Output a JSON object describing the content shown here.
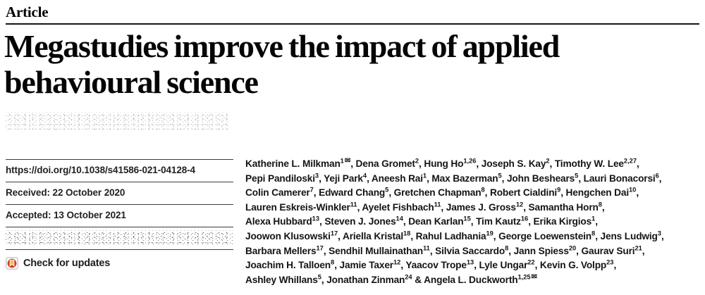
{
  "header": {
    "kicker": "Article",
    "title": "Megastudies improve the impact of applied\nbehavioural science"
  },
  "colors": {
    "text": "#1a1a1a",
    "rule": "#3d3d3d",
    "crossmark_red": "#cf3a2f",
    "crossmark_yellow": "#f5c33b"
  },
  "sidebar": {
    "rows": [
      {
        "kind": "link",
        "name": "doi-link",
        "interactable": true,
        "text": "https://doi.org/10.1038/s41586-021-04128-4"
      },
      {
        "kind": "text",
        "name": "received-date",
        "interactable": false,
        "text": "Received: 22 October 2020"
      },
      {
        "kind": "text",
        "name": "accepted-date",
        "interactable": false,
        "text": "Accepted: 13 October 2021"
      },
      {
        "kind": "redacted",
        "name": "published-online-redacted-row",
        "interactable": false,
        "text": ""
      }
    ],
    "check_for_updates_label": "Check for updates"
  },
  "icons": {
    "check_for_updates": "crossmark-icon",
    "corresponding_author": "envelope-icon",
    "mail_glyph": "✉"
  },
  "authors": {
    "lines": [
      [
        {
          "name": "Katherine L. Milkman",
          "sup": "1",
          "mail": true,
          "post": ", "
        },
        {
          "name": "Dena Gromet",
          "sup": "2",
          "post": ", "
        },
        {
          "name": "Hung Ho",
          "sup": "1,26",
          "post": ", "
        },
        {
          "name": "Joseph S. Kay",
          "sup": "2",
          "post": ", "
        },
        {
          "name": "Timothy W. Lee",
          "sup": "2,27",
          "post": ","
        }
      ],
      [
        {
          "name": "Pepi Pandiloski",
          "sup": "3",
          "post": ", "
        },
        {
          "name": "Yeji Park",
          "sup": "4",
          "post": ", "
        },
        {
          "name": "Aneesh Rai",
          "sup": "1",
          "post": ", "
        },
        {
          "name": "Max Bazerman",
          "sup": "5",
          "post": ", "
        },
        {
          "name": "John Beshears",
          "sup": "5",
          "post": ", "
        },
        {
          "name": "Lauri Bonacorsi",
          "sup": "6",
          "post": ","
        }
      ],
      [
        {
          "name": "Colin Camerer",
          "sup": "7",
          "post": ", "
        },
        {
          "name": "Edward Chang",
          "sup": "5",
          "post": ", "
        },
        {
          "name": "Gretchen Chapman",
          "sup": "8",
          "post": ", "
        },
        {
          "name": "Robert Cialdini",
          "sup": "9",
          "post": ", "
        },
        {
          "name": "Hengchen Dai",
          "sup": "10",
          "post": ","
        }
      ],
      [
        {
          "name": "Lauren Eskreis-Winkler",
          "sup": "11",
          "post": ", "
        },
        {
          "name": "Ayelet Fishbach",
          "sup": "11",
          "post": ", "
        },
        {
          "name": "James J. Gross",
          "sup": "12",
          "post": ", "
        },
        {
          "name": "Samantha Horn",
          "sup": "8",
          "post": ","
        }
      ],
      [
        {
          "name": "Alexa Hubbard",
          "sup": "13",
          "post": ", "
        },
        {
          "name": "Steven J. Jones",
          "sup": "14",
          "post": ", "
        },
        {
          "name": "Dean Karlan",
          "sup": "15",
          "post": ", "
        },
        {
          "name": "Tim Kautz",
          "sup": "16",
          "post": ", "
        },
        {
          "name": "Erika Kirgios",
          "sup": "1",
          "post": ","
        }
      ],
      [
        {
          "name": "Joowon Klusowski",
          "sup": "17",
          "post": ", "
        },
        {
          "name": "Ariella Kristal",
          "sup": "18",
          "post": ", "
        },
        {
          "name": "Rahul Ladhania",
          "sup": "19",
          "post": ", "
        },
        {
          "name": "George Loewenstein",
          "sup": "8",
          "post": ", "
        },
        {
          "name": "Jens Ludwig",
          "sup": "3",
          "post": ","
        }
      ],
      [
        {
          "name": "Barbara Mellers",
          "sup": "17",
          "post": ", "
        },
        {
          "name": "Sendhil Mullainathan",
          "sup": "11",
          "post": ", "
        },
        {
          "name": "Silvia Saccardo",
          "sup": "8",
          "post": ", "
        },
        {
          "name": "Jann Spiess",
          "sup": "20",
          "post": ", "
        },
        {
          "name": "Gaurav Suri",
          "sup": "21",
          "post": ","
        }
      ],
      [
        {
          "name": "Joachim H. Talloen",
          "sup": "8",
          "post": ", "
        },
        {
          "name": "Jamie Taxer",
          "sup": "12",
          "post": ", "
        },
        {
          "name": "Yaacov Trope",
          "sup": "13",
          "post": ", "
        },
        {
          "name": "Lyle Ungar",
          "sup": "22",
          "post": ", "
        },
        {
          "name": "Kevin G. Volpp",
          "sup": "23",
          "post": ","
        }
      ],
      [
        {
          "name": "Ashley Whillans",
          "sup": "5",
          "post": ", "
        },
        {
          "name": "Jonathan Zinman",
          "sup": "24",
          "post": " & "
        },
        {
          "name": "Angela L. Duckworth",
          "sup": "1,25",
          "mail": true,
          "post": ""
        }
      ]
    ]
  }
}
